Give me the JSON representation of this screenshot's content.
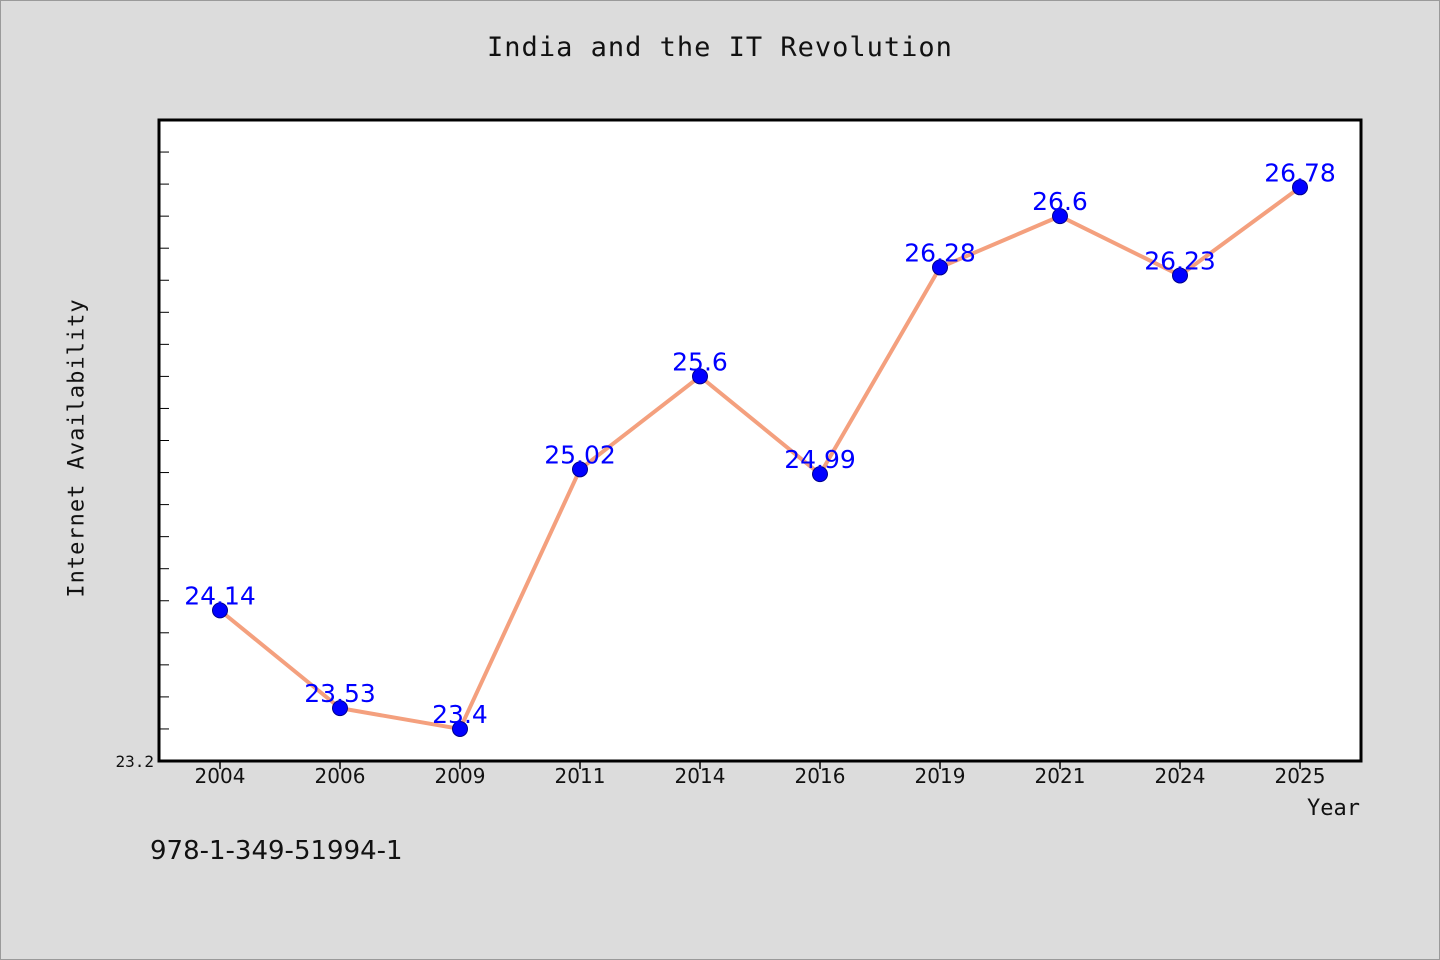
{
  "chart_data": {
    "type": "line",
    "title": "India and the IT Revolution",
    "xlabel": "Year",
    "ylabel": "Internet Availability",
    "categories": [
      "2004",
      "2006",
      "2009",
      "2011",
      "2014",
      "2016",
      "2019",
      "2021",
      "2024",
      "2025"
    ],
    "series": [
      {
        "values": [
          24.14,
          23.53,
          23.4,
          25.02,
          25.6,
          24.99,
          26.28,
          26.6,
          26.23,
          26.78
        ]
      }
    ],
    "data_labels": [
      "24.14",
      "23.53",
      "23.4",
      "25.02",
      "25.6",
      "24.99",
      "26.28",
      "26.6",
      "26.23",
      "26.78]"
    ],
    "ylim": [
      23.2,
      27.2
    ],
    "ymin_label": "23.2",
    "grid": false,
    "line_color": "#f4a07e",
    "marker_color": "#0000ff",
    "label_color": "#0000ff"
  },
  "footer": {
    "id_text": "978-1-349-51994-1"
  }
}
